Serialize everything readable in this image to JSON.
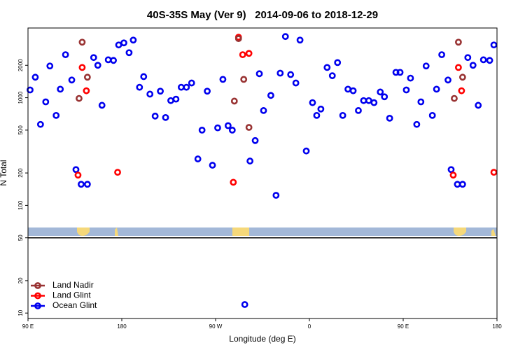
{
  "chart_data": {
    "type": "scatter",
    "title": "40S-35S May (Ver 9)   2014-09-06 to 2018-12-29",
    "x_label": "Longitude (deg E)",
    "y_label": "N Total",
    "log_y": true,
    "legend": "lower left",
    "xlim": [
      90,
      540
    ],
    "xticks": [
      {
        "value": 90,
        "label": "90 E"
      },
      180,
      {
        "value": 270,
        "label": "90 W"
      },
      {
        "value": 360,
        "label": "0"
      },
      {
        "value": 450,
        "label": "90 E"
      },
      {
        "value": 540,
        "label": "180"
      }
    ],
    "ylim": [
      8.9,
      4440
    ],
    "yticks": [
      10,
      20,
      50,
      100,
      200,
      500,
      1000,
      2000
    ],
    "series": [
      {
        "name": "Land Nadir",
        "color": "#993333",
        "x": [
          139,
          142,
          147,
          288,
          292,
          297,
          302,
          503,
          507,
          499
        ],
        "values": [
          985,
          3280,
          1550,
          930,
          3540,
          1480,
          530,
          3280,
          1550,
          985
        ]
      },
      {
        "name": "Land Glint",
        "color": "#ff0000",
        "x": [
          138,
          142,
          146,
          176,
          287,
          292,
          296,
          302,
          498,
          503,
          506,
          537
        ],
        "values": [
          191,
          1910,
          1160,
          203,
          164,
          3650,
          2510,
          2580,
          191,
          1910,
          1160,
          203
        ]
      },
      {
        "name": "Ocean Glint",
        "color": "#0000ee",
        "x": [
          92,
          97,
          102,
          107,
          111,
          117,
          121,
          126,
          132,
          136,
          141,
          147,
          153,
          157,
          161,
          167,
          172,
          177,
          182,
          187,
          191,
          197,
          201,
          207,
          212,
          217,
          222,
          227,
          232,
          237,
          242,
          247,
          253,
          257,
          262,
          267,
          272,
          277,
          282,
          286,
          303,
          308,
          312,
          316,
          323,
          328,
          332,
          337,
          342,
          347,
          351,
          357,
          363,
          367,
          371,
          377,
          382,
          387,
          392,
          397,
          402,
          407,
          412,
          417,
          422,
          428,
          432,
          437,
          443,
          447,
          453,
          457,
          463,
          467,
          472,
          478,
          482,
          487,
          493,
          496,
          502,
          507,
          512,
          517,
          522,
          527,
          533,
          537,
          298
        ],
        "values": [
          1180,
          1550,
          565,
          915,
          1970,
          685,
          1200,
          2510,
          1460,
          215,
          157,
          157,
          2360,
          2000,
          850,
          2250,
          2220,
          3090,
          3230,
          2620,
          3430,
          1250,
          1570,
          1080,
          675,
          1150,
          655,
          940,
          970,
          1250,
          1250,
          1370,
          270,
          500,
          1150,
          236,
          525,
          1480,
          550,
          500,
          258,
          400,
          1670,
          760,
          1050,
          124,
          1690,
          3700,
          1640,
          1370,
          3430,
          320,
          900,
          685,
          785,
          1910,
          1600,
          2120,
          685,
          1200,
          1160,
          760,
          940,
          940,
          900,
          1130,
          1020,
          645,
          1720,
          1720,
          1180,
          1520,
          565,
          915,
          1970,
          685,
          1200,
          2510,
          1460,
          215,
          157,
          157,
          2360,
          2000,
          850,
          2250,
          2220,
          3090,
          12
        ]
      }
    ]
  }
}
